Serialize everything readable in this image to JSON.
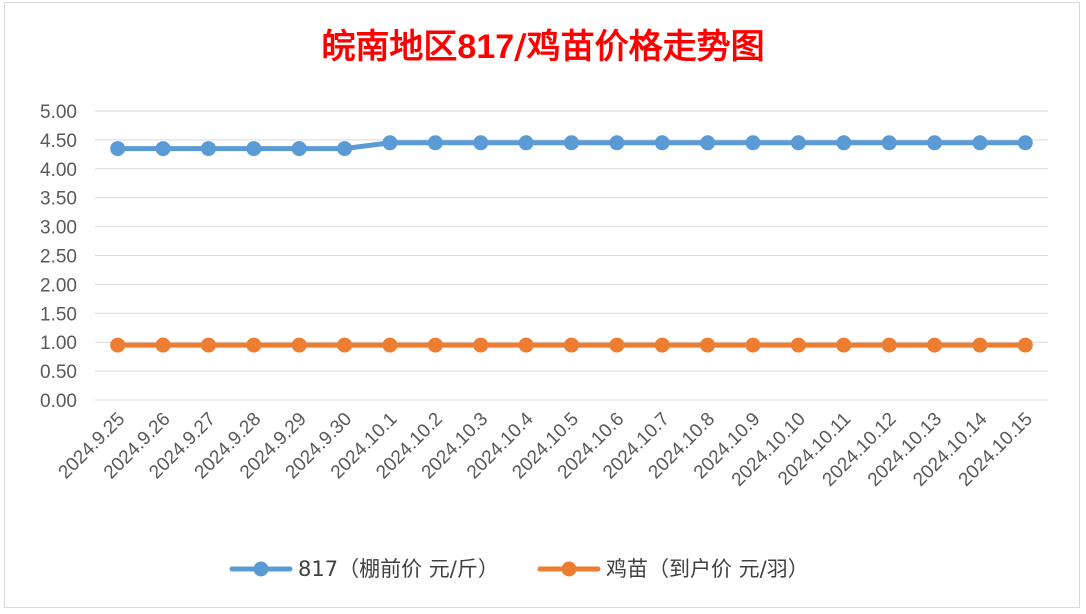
{
  "chart_data": {
    "type": "line",
    "title_parts": {
      "prefix": "皖南地区",
      "code": "817",
      "suffix": "/鸡苗价格走势图"
    },
    "title_color": "#ff0000",
    "xlabel": "",
    "ylabel": "",
    "ylim": [
      0,
      5
    ],
    "yticks": [
      "0.00",
      "0.50",
      "1.00",
      "1.50",
      "2.00",
      "2.50",
      "3.00",
      "3.50",
      "4.00",
      "4.50",
      "5.00"
    ],
    "grid": true,
    "legend_position": "bottom",
    "categories": [
      "2024.9.25",
      "2024.9.26",
      "2024.9.27",
      "2024.9.28",
      "2024.9.29",
      "2024.9.30",
      "2024.10.1",
      "2024.10.2",
      "2024.10.3",
      "2024.10.4",
      "2024.10.5",
      "2024.10.6",
      "2024.10.7",
      "2024.10.8",
      "2024.10.9",
      "2024.10.10",
      "2024.10.11",
      "2024.10.12",
      "2024.10.13",
      "2024.10.14",
      "2024.10.15"
    ],
    "series": [
      {
        "name": "817（棚前价 元/斤）",
        "color": "#5b9bd5",
        "values": [
          4.35,
          4.35,
          4.35,
          4.35,
          4.35,
          4.35,
          4.45,
          4.45,
          4.45,
          4.45,
          4.45,
          4.45,
          4.45,
          4.45,
          4.45,
          4.45,
          4.45,
          4.45,
          4.45,
          4.45,
          4.45
        ]
      },
      {
        "name": "鸡苗（到户价 元/羽）",
        "color": "#ed7d31",
        "values": [
          0.95,
          0.95,
          0.95,
          0.95,
          0.95,
          0.95,
          0.95,
          0.95,
          0.95,
          0.95,
          0.95,
          0.95,
          0.95,
          0.95,
          0.95,
          0.95,
          0.95,
          0.95,
          0.95,
          0.95,
          0.95
        ]
      }
    ]
  }
}
